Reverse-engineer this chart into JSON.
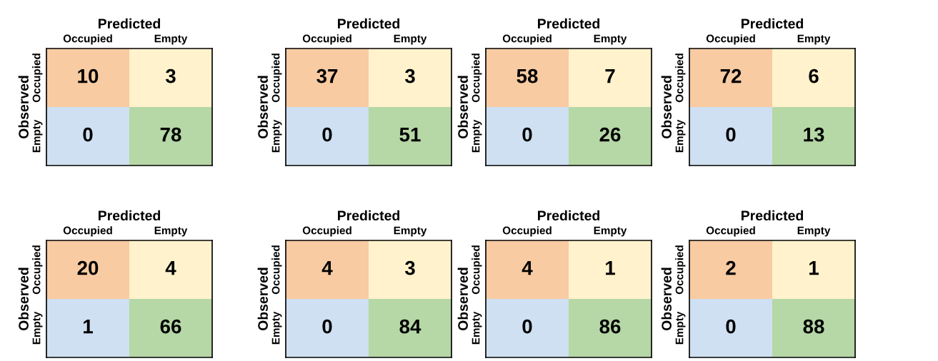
{
  "chart_data": [
    {
      "type": "heatmap",
      "xlabel": "Predicted",
      "ylabel": "Observed",
      "categories": [
        "Occupied",
        "Empty"
      ],
      "y_categories": [
        "Occupied",
        "Empty"
      ],
      "cells": [
        [
          10,
          3
        ],
        [
          0,
          78
        ]
      ],
      "colors": [
        [
          "#f8cba2",
          "#fff2cc"
        ],
        [
          "#cfe0f2",
          "#b6d7a6"
        ]
      ],
      "data_labels": true
    },
    {
      "type": "heatmap",
      "xlabel": "Predicted",
      "ylabel": "Observed",
      "categories": [
        "Occupied",
        "Empty"
      ],
      "y_categories": [
        "Occupied",
        "Empty"
      ],
      "cells": [
        [
          37,
          3
        ],
        [
          0,
          51
        ]
      ],
      "colors": [
        [
          "#f8cba2",
          "#fff2cc"
        ],
        [
          "#cfe0f2",
          "#b6d7a6"
        ]
      ],
      "data_labels": true
    },
    {
      "type": "heatmap",
      "xlabel": "Predicted",
      "ylabel": "Observed",
      "categories": [
        "Occupied",
        "Empty"
      ],
      "y_categories": [
        "Occupied",
        "Empty"
      ],
      "cells": [
        [
          58,
          7
        ],
        [
          0,
          26
        ]
      ],
      "colors": [
        [
          "#f8cba2",
          "#fff2cc"
        ],
        [
          "#cfe0f2",
          "#b6d7a6"
        ]
      ],
      "data_labels": true
    },
    {
      "type": "heatmap",
      "xlabel": "Predicted",
      "ylabel": "Observed",
      "categories": [
        "Occupied",
        "Empty"
      ],
      "y_categories": [
        "Occupied",
        "Empty"
      ],
      "cells": [
        [
          72,
          6
        ],
        [
          0,
          13
        ]
      ],
      "colors": [
        [
          "#f8cba2",
          "#fff2cc"
        ],
        [
          "#cfe0f2",
          "#b6d7a6"
        ]
      ],
      "data_labels": true
    },
    {
      "type": "heatmap",
      "xlabel": "Predicted",
      "ylabel": "Observed",
      "categories": [
        "Occupied",
        "Empty"
      ],
      "y_categories": [
        "Occupied",
        "Empty"
      ],
      "cells": [
        [
          20,
          4
        ],
        [
          1,
          66
        ]
      ],
      "colors": [
        [
          "#f8cba2",
          "#fff2cc"
        ],
        [
          "#cfe0f2",
          "#b6d7a6"
        ]
      ],
      "data_labels": true
    },
    {
      "type": "heatmap",
      "xlabel": "Predicted",
      "ylabel": "Observed",
      "categories": [
        "Occupied",
        "Empty"
      ],
      "y_categories": [
        "Occupied",
        "Empty"
      ],
      "cells": [
        [
          4,
          3
        ],
        [
          0,
          84
        ]
      ],
      "colors": [
        [
          "#f8cba2",
          "#fff2cc"
        ],
        [
          "#cfe0f2",
          "#b6d7a6"
        ]
      ],
      "data_labels": true
    },
    {
      "type": "heatmap",
      "xlabel": "Predicted",
      "ylabel": "Observed",
      "categories": [
        "Occupied",
        "Empty"
      ],
      "y_categories": [
        "Occupied",
        "Empty"
      ],
      "cells": [
        [
          4,
          1
        ],
        [
          0,
          86
        ]
      ],
      "colors": [
        [
          "#f8cba2",
          "#fff2cc"
        ],
        [
          "#cfe0f2",
          "#b6d7a6"
        ]
      ],
      "data_labels": true
    },
    {
      "type": "heatmap",
      "xlabel": "Predicted",
      "ylabel": "Observed",
      "categories": [
        "Occupied",
        "Empty"
      ],
      "y_categories": [
        "Occupied",
        "Empty"
      ],
      "cells": [
        [
          2,
          1
        ],
        [
          0,
          88
        ]
      ],
      "colors": [
        [
          "#f8cba2",
          "#fff2cc"
        ],
        [
          "#cfe0f2",
          "#b6d7a6"
        ]
      ],
      "data_labels": true
    }
  ]
}
